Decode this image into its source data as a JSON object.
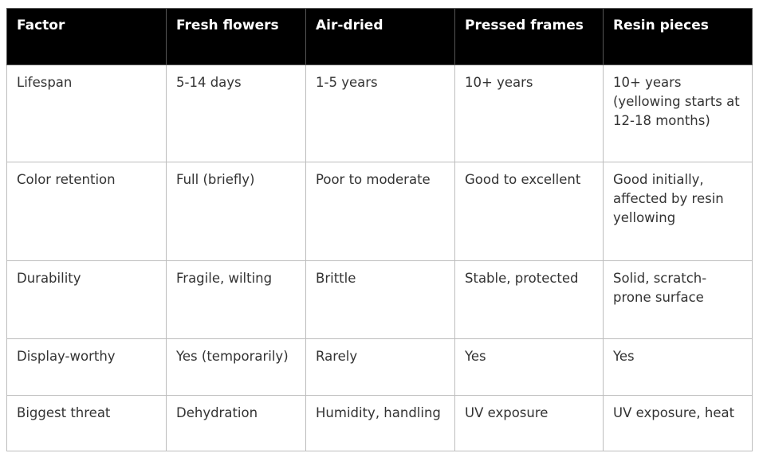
{
  "table": {
    "header": [
      "Factor",
      "Fresh flowers",
      "Air-dried",
      "Pressed frames",
      "Resin pieces"
    ],
    "rows": [
      [
        "Lifespan",
        "5-14 days",
        "1-5 years",
        "10+ years",
        "10+ years (yellowing starts at 12-18 months)"
      ],
      [
        "Color retention",
        "Full (briefly)",
        "Poor to moderate",
        "Good to excellent",
        "Good initially, affected by resin yellowing"
      ],
      [
        "Durability",
        "Fragile, wilting",
        "Brittle",
        "Stable, protected",
        "Solid, scratch-prone surface"
      ],
      [
        "Display-worthy",
        "Yes (temporarily)",
        "Rarely",
        "Yes",
        "Yes"
      ],
      [
        "Biggest threat",
        "Dehydration",
        "Humidity, handling",
        "UV exposure",
        "UV exposure, heat"
      ]
    ]
  }
}
